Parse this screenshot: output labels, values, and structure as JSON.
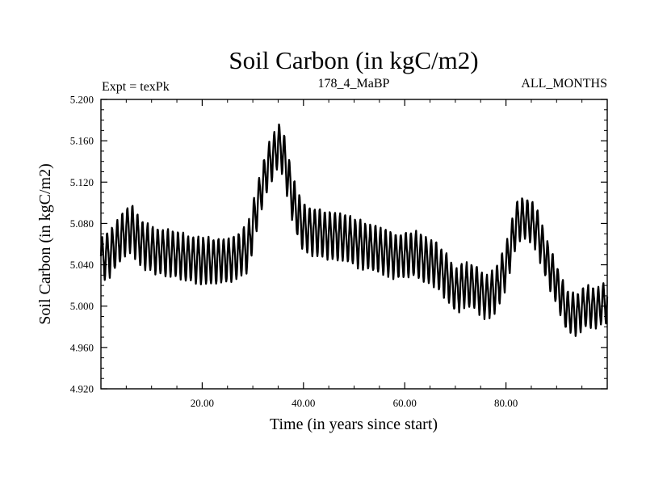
{
  "chart_data": {
    "type": "line",
    "title": "Soil Carbon (in kgC/m2)",
    "subtitle_left": "Expt = texPk",
    "subtitle_center": "178_4_MaBP",
    "subtitle_right": "ALL_MONTHS",
    "xlabel": "Time (in years since start)",
    "ylabel": "Soil Carbon (in kgC/m2)",
    "xlim": [
      0,
      100
    ],
    "ylim": [
      4.92,
      5.2
    ],
    "x_ticks": [
      20,
      40,
      60,
      80
    ],
    "x_tick_labels": [
      "20.00",
      "40.00",
      "60.00",
      "80.00"
    ],
    "y_ticks": [
      4.92,
      4.96,
      5.0,
      5.04,
      5.08,
      5.12,
      5.16,
      5.2
    ],
    "y_tick_labels": [
      "4.920",
      "4.960",
      "5.000",
      "5.040",
      "5.080",
      "5.120",
      "5.160",
      "5.200"
    ],
    "grid": false,
    "series": [
      {
        "name": "Soil Carbon",
        "color": "#000000",
        "seasonal_cycle_per_year": true,
        "annual_baseline": {
          "x": [
            0,
            2,
            5,
            6,
            8,
            10,
            14,
            18,
            22,
            26,
            29,
            31,
            33,
            35,
            36,
            38,
            40,
            43,
            46,
            50,
            54,
            58,
            62,
            66,
            68,
            70,
            72,
            74,
            76,
            78,
            80,
            82,
            84,
            86,
            88,
            90,
            92,
            94,
            96,
            98,
            100
          ],
          "y": [
            5.045,
            5.052,
            5.072,
            5.075,
            5.06,
            5.055,
            5.05,
            5.045,
            5.043,
            5.045,
            5.055,
            5.1,
            5.135,
            5.155,
            5.148,
            5.1,
            5.075,
            5.07,
            5.068,
            5.062,
            5.055,
            5.048,
            5.05,
            5.04,
            5.03,
            5.015,
            5.02,
            5.018,
            5.008,
            5.015,
            5.038,
            5.08,
            5.085,
            5.075,
            5.045,
            5.02,
            4.995,
            4.992,
            5.0,
            4.998,
            5.005
          ]
        },
        "annual_amplitude": {
          "x": [
            0,
            30,
            31,
            40,
            90,
            100
          ],
          "y": [
            0.044,
            0.044,
            0.04,
            0.046,
            0.04,
            0.038
          ]
        }
      }
    ]
  }
}
